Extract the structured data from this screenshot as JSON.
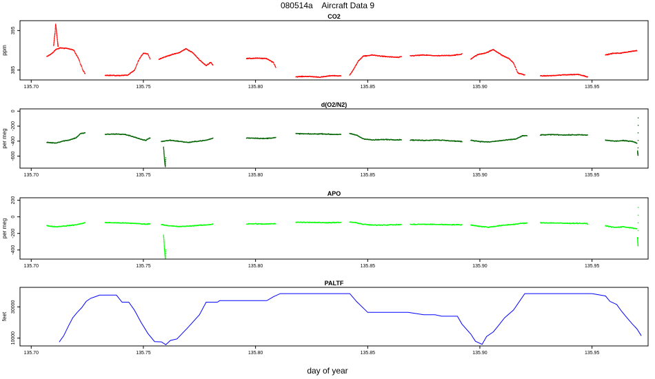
{
  "page": {
    "title": "080514a    Aircraft Data 9",
    "xlabel": "day of year"
  },
  "chart_data": [
    {
      "type": "scatter",
      "title": "CO2",
      "ylabel": "ppm",
      "color": "#ff0000",
      "xlim": [
        135.695,
        135.975
      ],
      "ylim": [
        382.5,
        397.5
      ],
      "yticks": [
        385,
        395
      ],
      "xticks": [
        135.7,
        135.75,
        135.8,
        135.85,
        135.9,
        135.95
      ],
      "segments": [
        {
          "x": [
            135.707,
            135.709,
            135.711,
            135.713,
            135.716,
            135.719,
            135.721,
            135.723,
            135.724
          ],
          "y": [
            388.4,
            389.1,
            390.2,
            390.6,
            390.5,
            390.0,
            388.0,
            385.0,
            384.1
          ]
        },
        {
          "x": [
            135.733,
            135.738,
            135.743,
            135.746,
            135.748,
            135.75,
            135.752,
            135.753
          ],
          "y": [
            383.7,
            383.6,
            383.7,
            384.9,
            387.6,
            389.3,
            389.1,
            387.8
          ]
        },
        {
          "x": [
            135.757,
            135.762,
            135.766,
            135.769,
            135.772,
            135.775,
            135.778,
            135.78,
            135.781
          ],
          "y": [
            387.8,
            388.8,
            389.4,
            390.4,
            389.4,
            387.6,
            386.1,
            387.0,
            386.3
          ]
        },
        {
          "x": [
            135.796,
            135.8,
            135.805,
            135.808,
            135.809
          ],
          "y": [
            387.9,
            388.0,
            387.9,
            386.9,
            385.7
          ]
        },
        {
          "x": [
            135.818,
            135.823,
            135.829,
            135.834,
            135.838
          ],
          "y": [
            383.3,
            383.4,
            383.2,
            383.6,
            383.5
          ]
        },
        {
          "x": [
            135.842,
            135.844,
            135.846,
            135.848,
            135.852,
            135.858,
            135.864,
            135.865
          ],
          "y": [
            383.7,
            385.5,
            387.4,
            388.5,
            388.8,
            388.4,
            388.2,
            388.4
          ]
        },
        {
          "x": [
            135.869,
            135.875,
            135.881,
            135.887,
            135.891,
            135.892
          ],
          "y": [
            388.6,
            388.8,
            388.6,
            388.7,
            388.9,
            389.1
          ]
        },
        {
          "x": [
            135.896,
            135.899,
            135.903,
            135.906,
            135.91,
            135.913,
            135.915,
            135.917,
            135.92
          ],
          "y": [
            387.8,
            388.9,
            389.4,
            390.2,
            388.7,
            387.9,
            386.8,
            384.2,
            383.8
          ]
        },
        {
          "x": [
            135.927,
            135.933,
            135.938,
            135.944,
            135.948
          ],
          "y": [
            383.5,
            383.6,
            383.8,
            383.9,
            383.3
          ]
        },
        {
          "x": [
            135.956,
            135.959,
            135.963,
            135.967,
            135.97
          ],
          "y": [
            388.8,
            389.2,
            389.3,
            389.7,
            389.9
          ]
        }
      ],
      "spike": {
        "x": [
          135.71,
          135.7103,
          135.7106,
          135.7109,
          135.7112,
          135.7115,
          135.7118,
          135.712
        ],
        "y": [
          391.2,
          392.8,
          394.4,
          396.6,
          395.1,
          393.5,
          391.9,
          390.8
        ]
      }
    },
    {
      "type": "scatter",
      "title": "d(O2/N2)",
      "ylabel": "per meg",
      "color": "#006400",
      "xlim": [
        135.695,
        135.975
      ],
      "ylim": [
        -760,
        30
      ],
      "yticks": [
        0,
        -200,
        -400,
        -600
      ],
      "xticks": [
        135.7,
        135.75,
        135.8,
        135.85,
        135.9,
        135.95
      ],
      "segments": [
        {
          "x": [
            135.707,
            135.711,
            135.714,
            135.717,
            135.72,
            135.722,
            135.724
          ],
          "y": [
            -418,
            -425,
            -400,
            -385,
            -355,
            -300,
            -290
          ]
        },
        {
          "x": [
            135.733,
            135.738,
            135.742,
            135.746,
            135.749,
            135.751,
            135.753
          ],
          "y": [
            -310,
            -305,
            -312,
            -345,
            -378,
            -390,
            -355
          ]
        },
        {
          "x": [
            135.758,
            135.762,
            135.766,
            135.77,
            135.774,
            135.778,
            135.781
          ],
          "y": [
            -405,
            -388,
            -403,
            -418,
            -402,
            -388,
            -362
          ]
        },
        {
          "x": [
            135.796,
            135.8,
            135.804,
            135.809
          ],
          "y": [
            -358,
            -360,
            -366,
            -353
          ]
        },
        {
          "x": [
            135.818,
            135.824,
            135.83,
            135.834,
            135.838
          ],
          "y": [
            -300,
            -305,
            -303,
            -310,
            -310
          ]
        },
        {
          "x": [
            135.842,
            135.845,
            135.848,
            135.852,
            135.858,
            135.864,
            135.865
          ],
          "y": [
            -300,
            -320,
            -368,
            -385,
            -378,
            -383,
            -380
          ]
        },
        {
          "x": [
            135.869,
            135.875,
            135.881,
            135.887,
            135.892
          ],
          "y": [
            -385,
            -390,
            -384,
            -396,
            -405
          ]
        },
        {
          "x": [
            135.896,
            135.9,
            135.904,
            135.908,
            135.912,
            135.916,
            135.919,
            135.921
          ],
          "y": [
            -388,
            -405,
            -412,
            -398,
            -385,
            -372,
            -330,
            -326
          ]
        },
        {
          "x": [
            135.927,
            135.933,
            135.938,
            135.944,
            135.948
          ],
          "y": [
            -318,
            -313,
            -318,
            -316,
            -320
          ]
        },
        {
          "x": [
            135.956,
            135.96,
            135.964,
            135.968,
            135.97
          ],
          "y": [
            -387,
            -400,
            -394,
            -402,
            -428
          ]
        }
      ],
      "spike": {
        "x": [
          135.759,
          135.7592,
          135.7594,
          135.7596,
          135.7598,
          135.76
        ],
        "y": [
          -480,
          -560,
          -640,
          -700,
          -740,
          -600
        ]
      },
      "spike2": {
        "x": [
          135.9703,
          135.9704,
          135.9705,
          135.9706
        ],
        "y": [
          -530,
          -560,
          -590,
          10
        ]
      }
    },
    {
      "type": "scatter",
      "title": "APO",
      "ylabel": "per meg",
      "color": "#00ff00",
      "xlim": [
        135.695,
        135.975
      ],
      "ylim": [
        -510,
        230
      ],
      "yticks": [
        200,
        0,
        -200,
        -400
      ],
      "xticks": [
        135.7,
        135.75,
        135.8,
        135.85,
        135.9,
        135.95
      ],
      "segments": [
        {
          "x": [
            135.707,
            135.711,
            135.715,
            135.719,
            135.722,
            135.724
          ],
          "y": [
            -108,
            -120,
            -110,
            -100,
            -85,
            -70
          ]
        },
        {
          "x": [
            135.733,
            135.738,
            135.743,
            135.747,
            135.75,
            135.753
          ],
          "y": [
            -70,
            -72,
            -76,
            -80,
            -88,
            -85
          ]
        },
        {
          "x": [
            135.758,
            135.762,
            135.766,
            135.77,
            135.774,
            135.778,
            135.781
          ],
          "y": [
            -92,
            -110,
            -118,
            -112,
            -104,
            -98,
            -88
          ]
        },
        {
          "x": [
            135.796,
            135.8,
            135.804,
            135.809
          ],
          "y": [
            -86,
            -84,
            -88,
            -82
          ]
        },
        {
          "x": [
            135.818,
            135.824,
            135.83,
            135.834,
            135.838
          ],
          "y": [
            -65,
            -66,
            -70,
            -70,
            -68
          ]
        },
        {
          "x": [
            135.842,
            135.845,
            135.848,
            135.852,
            135.858,
            135.864,
            135.865
          ],
          "y": [
            -62,
            -72,
            -90,
            -100,
            -98,
            -95,
            -92
          ]
        },
        {
          "x": [
            135.869,
            135.875,
            135.881,
            135.887,
            135.892
          ],
          "y": [
            -92,
            -90,
            -92,
            -95,
            -96
          ]
        },
        {
          "x": [
            135.896,
            135.9,
            135.904,
            135.908,
            135.912,
            135.916,
            135.919,
            135.921
          ],
          "y": [
            -98,
            -115,
            -125,
            -110,
            -98,
            -88,
            -78,
            -76
          ]
        },
        {
          "x": [
            135.927,
            135.933,
            135.938,
            135.944,
            135.948
          ],
          "y": [
            -72,
            -74,
            -78,
            -78,
            -82
          ]
        },
        {
          "x": [
            135.956,
            135.96,
            135.964,
            135.968,
            135.97
          ],
          "y": [
            -108,
            -128,
            -120,
            -135,
            -145
          ]
        }
      ],
      "spike": {
        "x": [
          135.759,
          135.7592,
          135.7594,
          135.7596,
          135.7598,
          135.76
        ],
        "y": [
          -220,
          -300,
          -380,
          -450,
          -500,
          -380
        ]
      },
      "spike2": {
        "x": [
          135.9703,
          135.9704,
          135.9705,
          135.9706
        ],
        "y": [
          -250,
          -300,
          -350,
          205
        ]
      }
    },
    {
      "type": "line",
      "title": "PALTF",
      "ylabel": "feet",
      "color": "#0000ff",
      "xlim": [
        135.695,
        135.975
      ],
      "ylim": [
        5000,
        42500
      ],
      "yticks": [
        10000,
        30000
      ],
      "xticks": [
        135.7,
        135.75,
        135.8,
        135.85,
        135.9,
        135.95
      ],
      "x": [
        135.7125,
        135.7145,
        135.7165,
        135.7185,
        135.7205,
        135.7225,
        135.7245,
        135.7265,
        135.7285,
        135.7305,
        135.7325,
        135.738,
        135.7405,
        135.7435,
        135.746,
        135.749,
        135.752,
        135.755,
        135.758,
        135.76,
        135.762,
        135.765,
        135.77,
        135.775,
        135.778,
        135.783,
        135.784,
        135.79,
        135.795,
        135.805,
        135.808,
        135.811,
        135.814,
        135.825,
        135.835,
        135.842,
        135.845,
        135.85,
        135.858,
        135.868,
        135.875,
        135.88,
        135.883,
        135.89,
        135.892,
        135.896,
        135.898,
        135.901,
        135.903,
        135.906,
        135.908,
        135.911,
        135.915,
        135.92,
        135.93,
        135.94,
        135.95,
        135.956,
        135.958,
        135.961,
        135.963,
        135.965,
        135.968,
        135.97,
        135.972
      ],
      "y": [
        7500,
        11500,
        17500,
        23000,
        26500,
        29500,
        33500,
        35500,
        36500,
        37500,
        37500,
        37500,
        33000,
        33000,
        28000,
        20000,
        13000,
        7800,
        7600,
        5800,
        8500,
        9500,
        17000,
        25000,
        33000,
        33000,
        34000,
        34000,
        34000,
        34000,
        36500,
        38500,
        38500,
        38500,
        38500,
        38500,
        33500,
        26500,
        26500,
        26500,
        25000,
        25000,
        24000,
        24000,
        19000,
        12500,
        8000,
        6000,
        11000,
        14000,
        17500,
        23000,
        28000,
        38500,
        38500,
        38500,
        38500,
        37000,
        33500,
        31500,
        27500,
        24000,
        19000,
        16000,
        11500
      ]
    }
  ]
}
